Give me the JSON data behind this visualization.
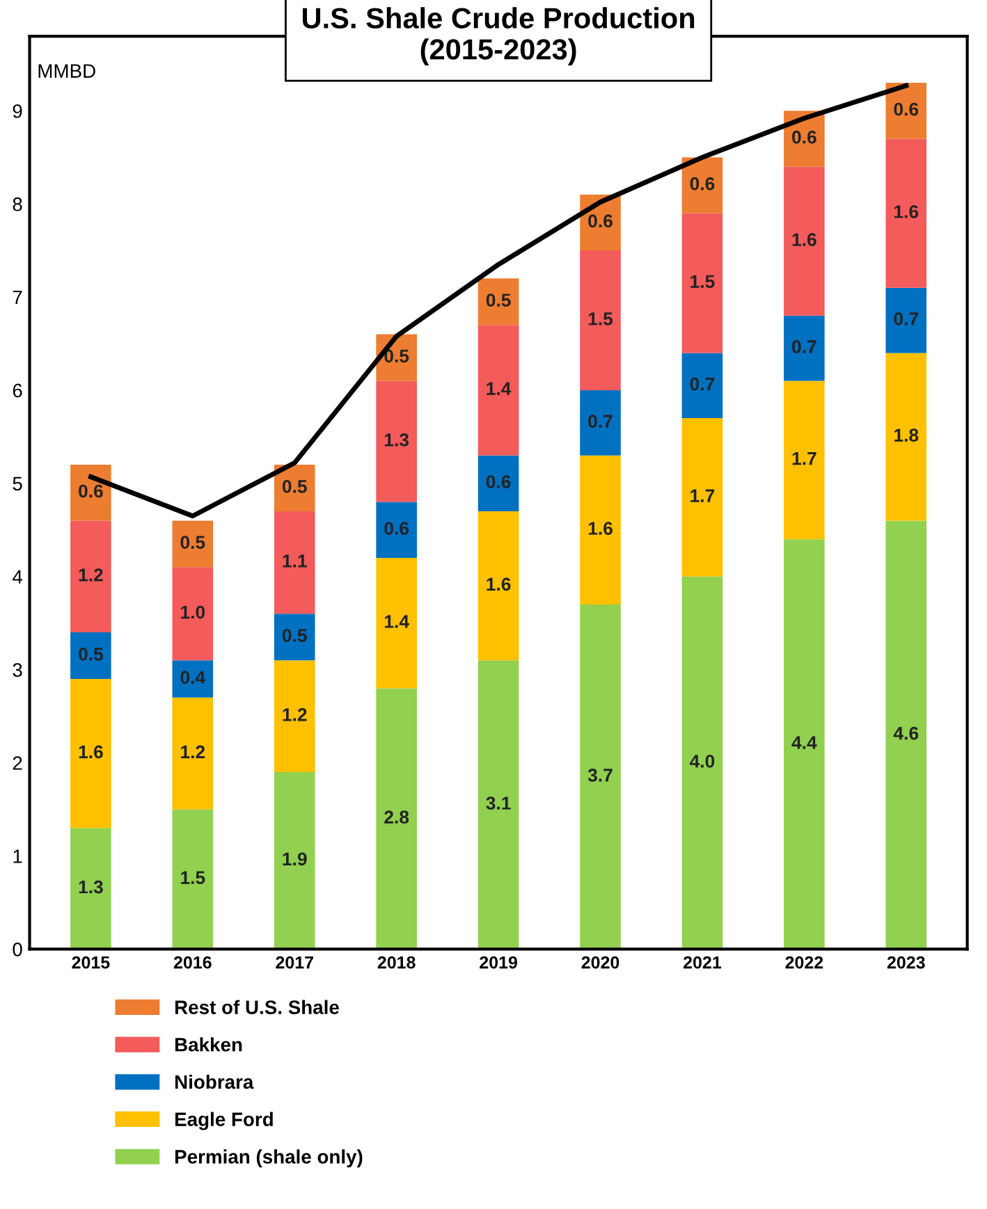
{
  "chart_data": {
    "type": "bar",
    "stacked": true,
    "title": "U.S. Shale Crude Production\n(2015-2023)",
    "ylabel": "MMBD",
    "categories": [
      "2015",
      "2016",
      "2017",
      "2018",
      "2019",
      "2020",
      "2021",
      "2022",
      "2023"
    ],
    "series": [
      {
        "name": "Permian (shale only)",
        "color": "#92d050",
        "values": [
          1.3,
          1.5,
          1.9,
          2.8,
          3.1,
          3.7,
          4.0,
          4.4,
          4.6
        ],
        "value_labels": [
          "1.3",
          "1.5",
          "1.9",
          "2.8",
          "3.1",
          "3.7",
          "4.0",
          "4.4",
          "4.6"
        ]
      },
      {
        "name": "Eagle Ford",
        "color": "#ffc000",
        "values": [
          1.6,
          1.2,
          1.2,
          1.4,
          1.6,
          1.6,
          1.7,
          1.7,
          1.8
        ],
        "value_labels": [
          "1.6",
          "1.2",
          "1.2",
          "1.4",
          "1.6",
          "1.6",
          "1.7",
          "1.7",
          "1.8"
        ]
      },
      {
        "name": "Niobrara",
        "color": "#0070c0",
        "values": [
          0.5,
          0.4,
          0.5,
          0.6,
          0.6,
          0.7,
          0.7,
          0.7,
          0.7
        ],
        "value_labels": [
          "0.5",
          "0.4",
          "0.5",
          "0.6",
          "0.6",
          "0.7",
          "0.7",
          "0.7",
          "0.7"
        ]
      },
      {
        "name": "Bakken",
        "color": "#f45b5b",
        "values": [
          1.2,
          1.0,
          1.1,
          1.3,
          1.4,
          1.5,
          1.5,
          1.6,
          1.6
        ],
        "value_labels": [
          "1.2",
          "1.0",
          "1.1",
          "1.3",
          "1.4",
          "1.5",
          "1.5",
          "1.6",
          "1.6"
        ]
      },
      {
        "name": "Rest of U.S. Shale",
        "color": "#ed7d31",
        "values": [
          0.6,
          0.5,
          0.5,
          0.5,
          0.5,
          0.6,
          0.6,
          0.6,
          0.6
        ],
        "value_labels": [
          "0.6",
          "0.5",
          "0.5",
          "0.5",
          "0.5",
          "0.6",
          "0.6",
          "0.6",
          "0.6"
        ]
      },
      {
        "type": "line",
        "color": "#000000",
        "values": [
          5.07,
          4.65,
          5.22,
          6.58,
          7.35,
          8.02,
          8.5,
          8.92,
          9.27
        ]
      }
    ],
    "ylim": [
      0,
      9.8
    ],
    "yticks": [
      0,
      1,
      2,
      3,
      4,
      5,
      6,
      7,
      8,
      9
    ],
    "grid": false,
    "legend": "bottom"
  }
}
